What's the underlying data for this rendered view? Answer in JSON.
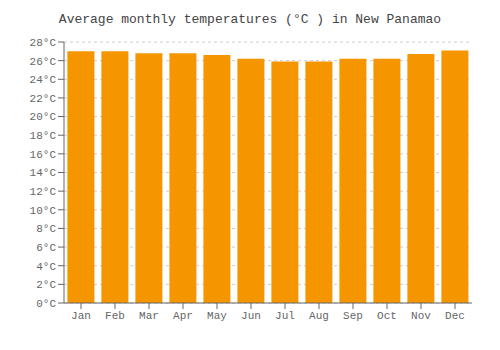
{
  "chart_data": {
    "type": "bar",
    "title": "Average monthly temperatures (°C ) in New Panamao",
    "categories": [
      "Jan",
      "Feb",
      "Mar",
      "Apr",
      "May",
      "Jun",
      "Jul",
      "Aug",
      "Sep",
      "Oct",
      "Nov",
      "Dec"
    ],
    "values": [
      27.0,
      27.0,
      26.8,
      26.8,
      26.6,
      26.2,
      25.9,
      25.9,
      26.2,
      26.2,
      26.7,
      27.1
    ],
    "color": "#F59500",
    "ylim": [
      0,
      28
    ],
    "yticks": [
      {
        "value": 0,
        "label": "0°C"
      },
      {
        "value": 2,
        "label": "2°C"
      },
      {
        "value": 4,
        "label": "4°C"
      },
      {
        "value": 6,
        "label": "6°C"
      },
      {
        "value": 8,
        "label": "8°C"
      },
      {
        "value": 10,
        "label": "10°C"
      },
      {
        "value": 12,
        "label": "12°C"
      },
      {
        "value": 14,
        "label": "14°C"
      },
      {
        "value": 16,
        "label": "16°C"
      },
      {
        "value": 18,
        "label": "18°C"
      },
      {
        "value": 20,
        "label": "20°C"
      },
      {
        "value": 22,
        "label": "22°C"
      },
      {
        "value": 24,
        "label": "24°C"
      },
      {
        "value": 26,
        "label": "26°C"
      },
      {
        "value": 28,
        "label": "28°C"
      }
    ],
    "grid": true
  }
}
